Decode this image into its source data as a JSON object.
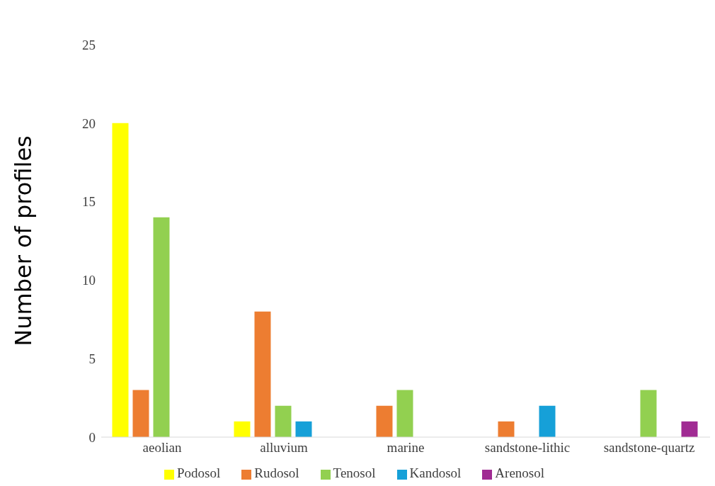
{
  "chart_data": {
    "type": "bar",
    "ylabel": "Number of profiles",
    "categories": [
      "aeolian",
      "alluvium",
      "marine",
      "sandstone-lithic",
      "sandstone-quartz"
    ],
    "series": [
      {
        "name": "Podosol",
        "color": "#ffff00",
        "values": [
          20,
          1,
          0,
          0,
          0
        ]
      },
      {
        "name": "Rudosol",
        "color": "#ed7d31",
        "values": [
          3,
          8,
          2,
          1,
          0
        ]
      },
      {
        "name": "Tenosol",
        "color": "#92d050",
        "values": [
          14,
          2,
          3,
          0,
          3
        ]
      },
      {
        "name": "Kandosol",
        "color": "#16a0d8",
        "values": [
          0,
          1,
          0,
          2,
          0
        ]
      },
      {
        "name": "Arenosol",
        "color": "#a02b93",
        "values": [
          0,
          0,
          0,
          0,
          1
        ]
      }
    ],
    "ylim": [
      0,
      25
    ],
    "yticks": [
      0,
      5,
      10,
      15,
      20,
      25
    ],
    "grid": false,
    "legend": "bottom"
  }
}
